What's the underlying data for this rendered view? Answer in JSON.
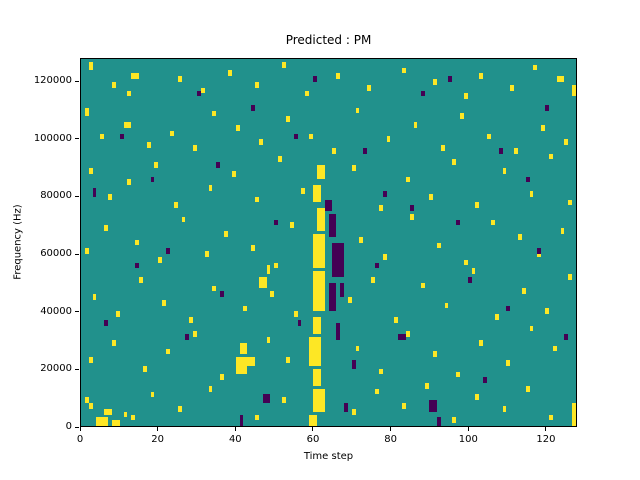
{
  "chart_data": {
    "type": "heatmap",
    "title": "Predicted : PM",
    "xlabel": "Time step",
    "ylabel": "Frequency (Hz)",
    "xlim": [
      0,
      128
    ],
    "ylim": [
      0,
      128000
    ],
    "x_ticks": [
      0,
      20,
      40,
      60,
      80,
      100,
      120
    ],
    "y_ticks": [
      0,
      20000,
      40000,
      60000,
      80000,
      100000,
      120000
    ],
    "grid": false,
    "xbins": 128,
    "ybins": 128,
    "bin_size_hz": 1000,
    "colors": {
      "background": "#21918c",
      "high": "#fde725",
      "low": "#440154"
    },
    "cells": {
      "yellow": [
        [
          4,
          0,
          3,
          3
        ],
        [
          8,
          0,
          2,
          2
        ],
        [
          6,
          4,
          2,
          2
        ],
        [
          13,
          2,
          1,
          2
        ],
        [
          2,
          6,
          1,
          2
        ],
        [
          59,
          0,
          2,
          4
        ],
        [
          60,
          5,
          3,
          8
        ],
        [
          60,
          14,
          2,
          6
        ],
        [
          59,
          21,
          3,
          10
        ],
        [
          60,
          32,
          2,
          6
        ],
        [
          60,
          40,
          3,
          14
        ],
        [
          60,
          55,
          3,
          12
        ],
        [
          61,
          68,
          2,
          8
        ],
        [
          60,
          78,
          2,
          6
        ],
        [
          61,
          86,
          2,
          5
        ],
        [
          40,
          18,
          3,
          6
        ],
        [
          41,
          25,
          2,
          4
        ],
        [
          43,
          21,
          2,
          3
        ],
        [
          46,
          48,
          2,
          4
        ],
        [
          48,
          53,
          1,
          3
        ],
        [
          2,
          124,
          1,
          3
        ],
        [
          8,
          118,
          1,
          2
        ],
        [
          13,
          121,
          2,
          2
        ],
        [
          12,
          115,
          1,
          2
        ],
        [
          25,
          120,
          1,
          2
        ],
        [
          31,
          116,
          1,
          2
        ],
        [
          38,
          122,
          1,
          2
        ],
        [
          45,
          118,
          1,
          2
        ],
        [
          52,
          125,
          1,
          2
        ],
        [
          58,
          115,
          1,
          2
        ],
        [
          66,
          121,
          1,
          2
        ],
        [
          74,
          117,
          1,
          2
        ],
        [
          83,
          123,
          1,
          2
        ],
        [
          91,
          119,
          1,
          2
        ],
        [
          99,
          114,
          1,
          2
        ],
        [
          103,
          121,
          1,
          2
        ],
        [
          111,
          117,
          1,
          2
        ],
        [
          117,
          124,
          1,
          2
        ],
        [
          123,
          120,
          2,
          2
        ],
        [
          127,
          115,
          1,
          4
        ],
        [
          1,
          108,
          1,
          3
        ],
        [
          5,
          100,
          1,
          2
        ],
        [
          11,
          104,
          2,
          2
        ],
        [
          17,
          97,
          1,
          2
        ],
        [
          23,
          101,
          1,
          2
        ],
        [
          29,
          96,
          1,
          2
        ],
        [
          34,
          108,
          1,
          2
        ],
        [
          40,
          103,
          1,
          2
        ],
        [
          46,
          98,
          1,
          2
        ],
        [
          53,
          106,
          1,
          2
        ],
        [
          59,
          100,
          1,
          2
        ],
        [
          65,
          95,
          1,
          2
        ],
        [
          71,
          109,
          1,
          2
        ],
        [
          79,
          99,
          1,
          2
        ],
        [
          86,
          104,
          1,
          2
        ],
        [
          93,
          96,
          1,
          2
        ],
        [
          98,
          107,
          1,
          2
        ],
        [
          105,
          100,
          1,
          2
        ],
        [
          112,
          95,
          1,
          2
        ],
        [
          119,
          103,
          1,
          2
        ],
        [
          125,
          98,
          1,
          2
        ],
        [
          2,
          88,
          1,
          2
        ],
        [
          7,
          79,
          1,
          2
        ],
        [
          12,
          84,
          1,
          2
        ],
        [
          19,
          90,
          1,
          2
        ],
        [
          24,
          76,
          1,
          2
        ],
        [
          33,
          82,
          1,
          2
        ],
        [
          39,
          87,
          1,
          2
        ],
        [
          45,
          78,
          1,
          2
        ],
        [
          51,
          92,
          1,
          2
        ],
        [
          57,
          81,
          1,
          2
        ],
        [
          70,
          89,
          1,
          2
        ],
        [
          77,
          75,
          1,
          2
        ],
        [
          84,
          85,
          1,
          2
        ],
        [
          90,
          79,
          1,
          2
        ],
        [
          96,
          91,
          1,
          2
        ],
        [
          102,
          76,
          1,
          2
        ],
        [
          109,
          88,
          1,
          2
        ],
        [
          116,
          80,
          1,
          2
        ],
        [
          121,
          93,
          1,
          2
        ],
        [
          126,
          77,
          1,
          2
        ],
        [
          1,
          60,
          1,
          2
        ],
        [
          6,
          68,
          1,
          2
        ],
        [
          14,
          63,
          1,
          2
        ],
        [
          20,
          57,
          1,
          2
        ],
        [
          26,
          71,
          1,
          2
        ],
        [
          32,
          59,
          1,
          2
        ],
        [
          37,
          66,
          1,
          2
        ],
        [
          44,
          61,
          1,
          2
        ],
        [
          50,
          55,
          1,
          2
        ],
        [
          54,
          69,
          1,
          2
        ],
        [
          72,
          64,
          1,
          2
        ],
        [
          78,
          58,
          1,
          2
        ],
        [
          85,
          72,
          1,
          2
        ],
        [
          92,
          62,
          1,
          2
        ],
        [
          99,
          56,
          1,
          2
        ],
        [
          106,
          70,
          1,
          2
        ],
        [
          113,
          65,
          1,
          2
        ],
        [
          118,
          59,
          1,
          2
        ],
        [
          124,
          67,
          1,
          2
        ],
        [
          3,
          44,
          1,
          2
        ],
        [
          9,
          38,
          1,
          2
        ],
        [
          15,
          50,
          1,
          2
        ],
        [
          21,
          42,
          1,
          2
        ],
        [
          28,
          36,
          1,
          2
        ],
        [
          34,
          47,
          1,
          2
        ],
        [
          42,
          40,
          1,
          2
        ],
        [
          49,
          45,
          1,
          2
        ],
        [
          55,
          38,
          1,
          2
        ],
        [
          69,
          43,
          1,
          2
        ],
        [
          75,
          50,
          1,
          2
        ],
        [
          81,
          36,
          1,
          2
        ],
        [
          88,
          48,
          1,
          2
        ],
        [
          94,
          41,
          1,
          2
        ],
        [
          101,
          53,
          1,
          2
        ],
        [
          107,
          37,
          1,
          2
        ],
        [
          114,
          46,
          1,
          2
        ],
        [
          120,
          39,
          1,
          2
        ],
        [
          126,
          51,
          1,
          2
        ],
        [
          2,
          22,
          1,
          2
        ],
        [
          8,
          28,
          1,
          2
        ],
        [
          16,
          19,
          1,
          2
        ],
        [
          22,
          25,
          1,
          2
        ],
        [
          29,
          31,
          1,
          2
        ],
        [
          36,
          16,
          1,
          2
        ],
        [
          48,
          29,
          1,
          2
        ],
        [
          53,
          22,
          1,
          2
        ],
        [
          71,
          26,
          1,
          2
        ],
        [
          77,
          18,
          1,
          2
        ],
        [
          84,
          31,
          1,
          2
        ],
        [
          91,
          24,
          1,
          2
        ],
        [
          97,
          17,
          1,
          2
        ],
        [
          103,
          28,
          1,
          2
        ],
        [
          110,
          21,
          1,
          2
        ],
        [
          116,
          33,
          1,
          2
        ],
        [
          122,
          26,
          1,
          2
        ],
        [
          1,
          8,
          1,
          2
        ],
        [
          11,
          3,
          1,
          2
        ],
        [
          18,
          10,
          1,
          2
        ],
        [
          25,
          5,
          1,
          2
        ],
        [
          33,
          12,
          1,
          2
        ],
        [
          45,
          2,
          1,
          2
        ],
        [
          52,
          8,
          1,
          2
        ],
        [
          70,
          4,
          1,
          2
        ],
        [
          76,
          11,
          1,
          2
        ],
        [
          83,
          6,
          1,
          2
        ],
        [
          89,
          13,
          1,
          2
        ],
        [
          96,
          1,
          1,
          2
        ],
        [
          102,
          9,
          1,
          2
        ],
        [
          109,
          5,
          1,
          2
        ],
        [
          115,
          12,
          1,
          2
        ],
        [
          121,
          2,
          1,
          2
        ],
        [
          127,
          0,
          1,
          8
        ]
      ],
      "purple": [
        [
          64,
          40,
          2,
          10
        ],
        [
          65,
          52,
          3,
          12
        ],
        [
          64,
          66,
          2,
          8
        ],
        [
          66,
          30,
          1,
          6
        ],
        [
          63,
          75,
          2,
          4
        ],
        [
          67,
          45,
          1,
          5
        ],
        [
          41,
          0,
          1,
          4
        ],
        [
          47,
          8,
          2,
          3
        ],
        [
          90,
          5,
          2,
          4
        ],
        [
          92,
          0,
          1,
          3
        ],
        [
          3,
          80,
          1,
          3
        ],
        [
          10,
          100,
          1,
          2
        ],
        [
          22,
          60,
          1,
          2
        ],
        [
          35,
          90,
          1,
          2
        ],
        [
          55,
          100,
          1,
          2
        ],
        [
          70,
          20,
          1,
          3
        ],
        [
          76,
          55,
          1,
          2
        ],
        [
          82,
          30,
          2,
          2
        ],
        [
          97,
          70,
          1,
          2
        ],
        [
          104,
          15,
          1,
          2
        ],
        [
          110,
          40,
          1,
          2
        ],
        [
          115,
          85,
          1,
          2
        ],
        [
          120,
          110,
          1,
          2
        ],
        [
          88,
          115,
          1,
          2
        ],
        [
          60,
          120,
          1,
          2
        ],
        [
          30,
          115,
          1,
          2
        ],
        [
          14,
          55,
          1,
          2
        ],
        [
          6,
          35,
          1,
          2
        ],
        [
          50,
          70,
          1,
          2
        ],
        [
          73,
          95,
          1,
          2
        ],
        [
          85,
          75,
          1,
          2
        ],
        [
          100,
          50,
          1,
          2
        ],
        [
          108,
          95,
          1,
          2
        ],
        [
          118,
          60,
          1,
          2
        ],
        [
          125,
          30,
          1,
          2
        ],
        [
          68,
          5,
          1,
          3
        ],
        [
          78,
          80,
          1,
          2
        ],
        [
          36,
          45,
          1,
          2
        ],
        [
          27,
          30,
          1,
          2
        ],
        [
          18,
          85,
          1,
          2
        ],
        [
          95,
          120,
          1,
          2
        ],
        [
          44,
          110,
          1,
          2
        ],
        [
          56,
          35,
          1,
          2
        ]
      ]
    }
  }
}
